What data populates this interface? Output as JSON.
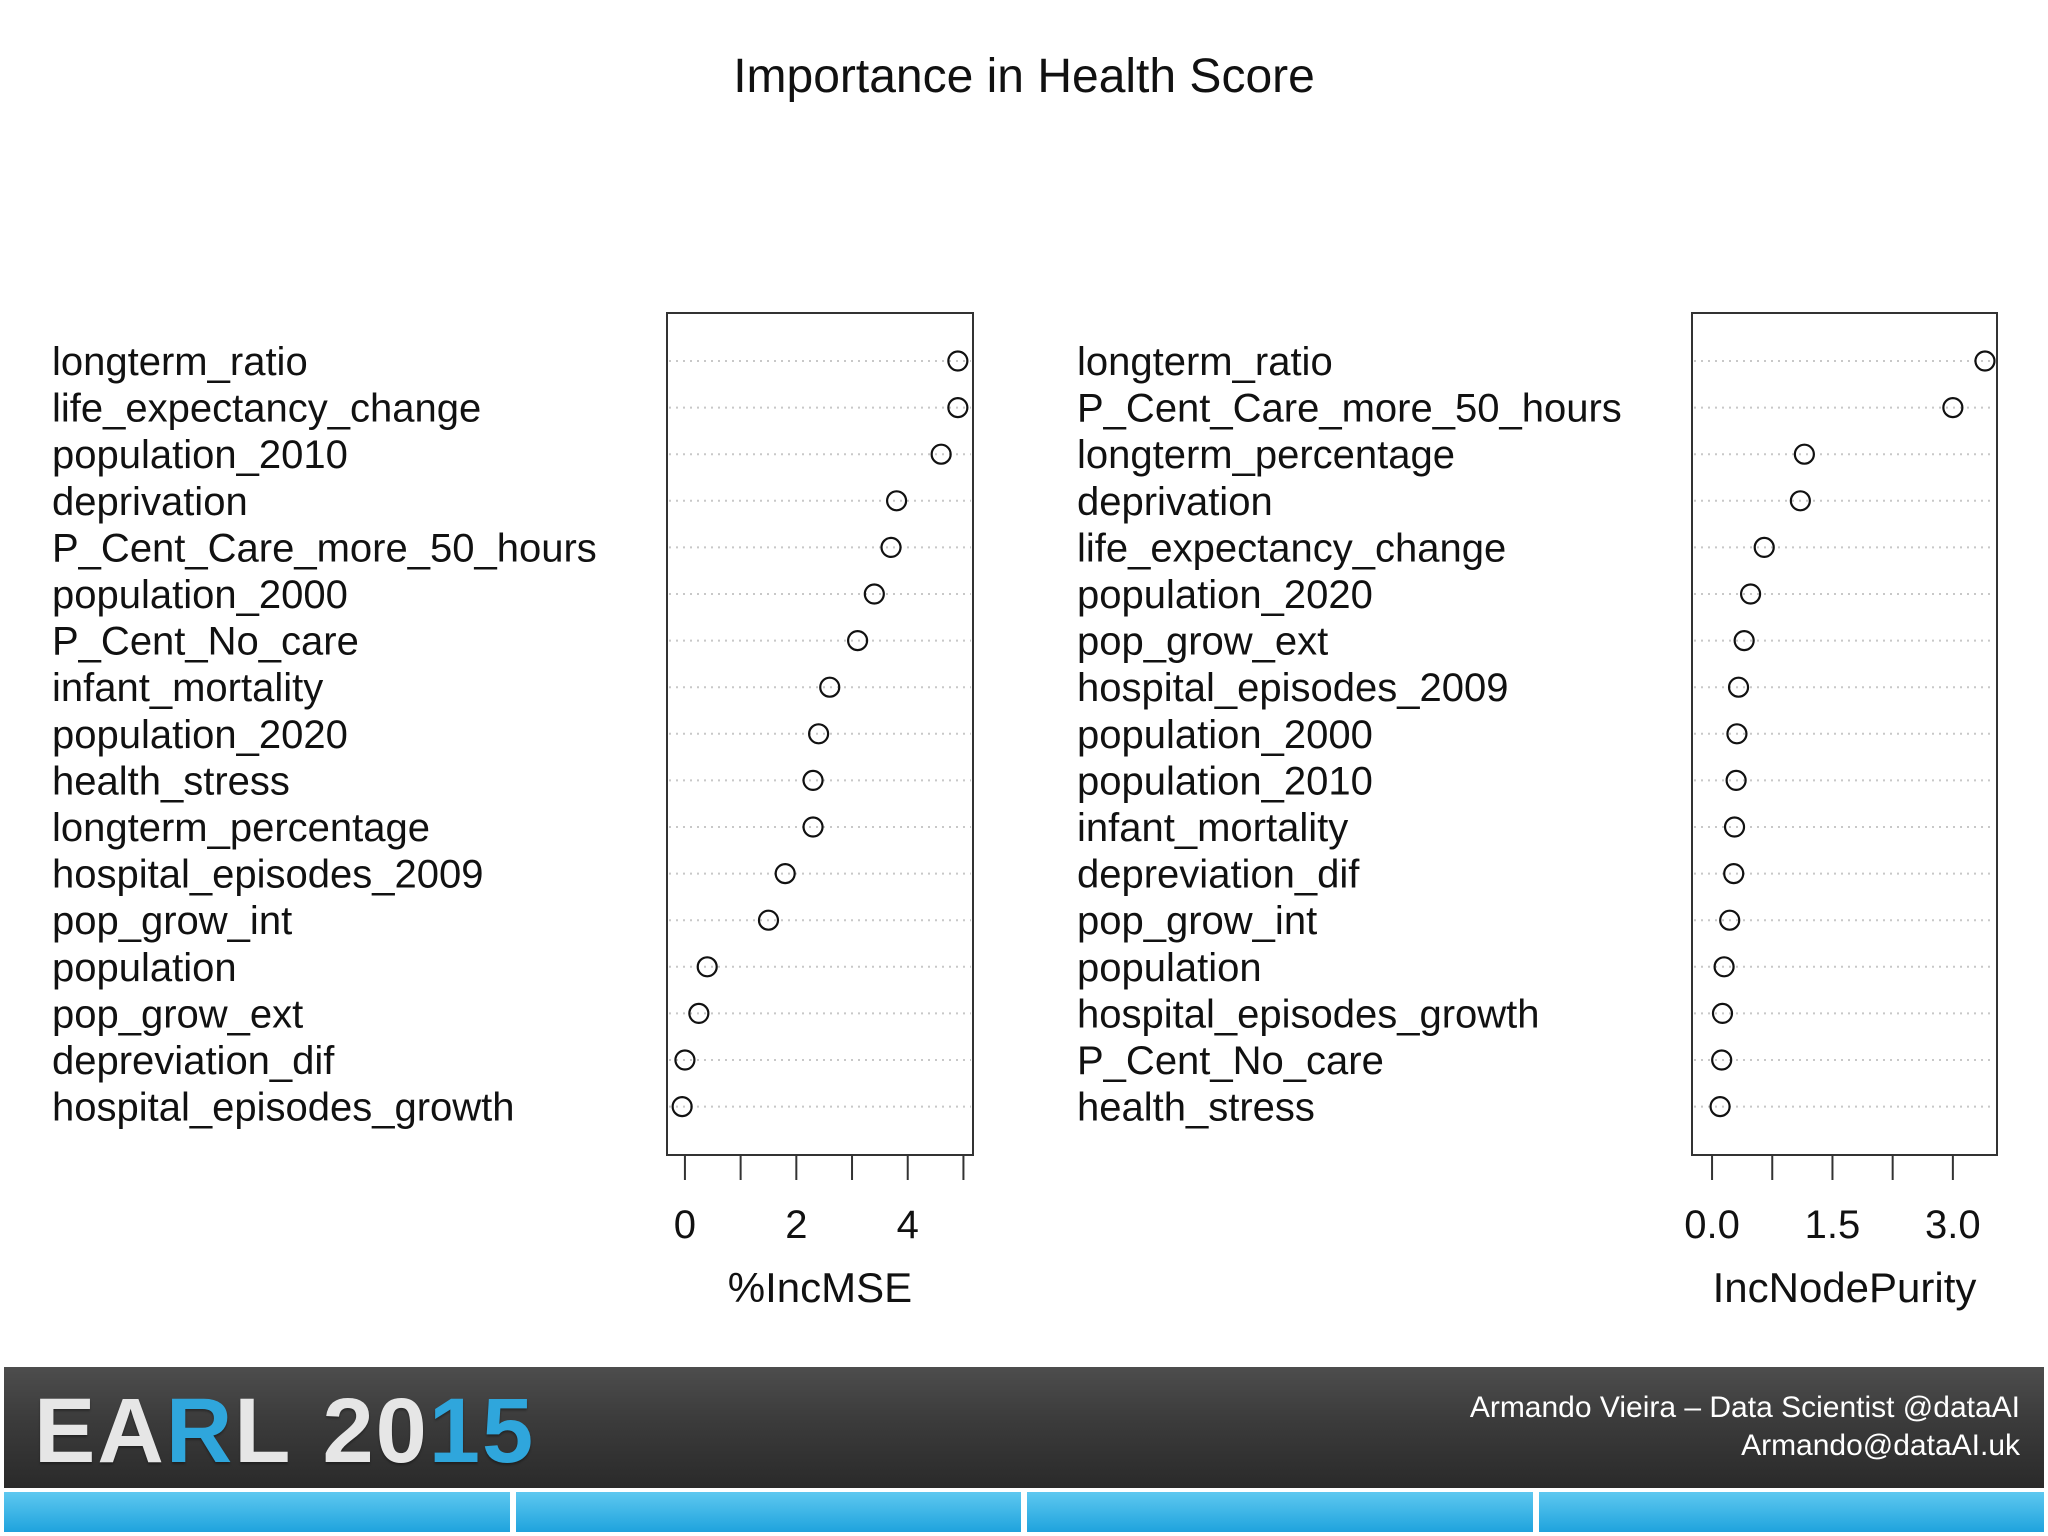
{
  "chart_data": {
    "title": "Importance in Health Score",
    "panels": [
      {
        "type": "scatter",
        "xlabel": "%IncMSE",
        "xticks": [
          0,
          2,
          4
        ],
        "xlim": [
          -0.25,
          5.1
        ],
        "categories": [
          "longterm_ratio",
          "life_expectancy_change",
          "population_2010",
          "deprivation",
          "P_Cent_Care_more_50_hours",
          "population_2000",
          "P_Cent_No_care",
          "infant_mortality",
          "population_2020",
          "health_stress",
          "longterm_percentage",
          "hospital_episodes_2009",
          "pop_grow_int",
          "population",
          "pop_grow_ext",
          "depreviation_dif",
          "hospital_episodes_growth"
        ],
        "values": [
          4.9,
          4.9,
          4.6,
          3.8,
          3.7,
          3.4,
          3.1,
          2.6,
          2.4,
          2.3,
          2.3,
          1.8,
          1.5,
          0.4,
          0.25,
          0.0,
          -0.05
        ]
      },
      {
        "type": "scatter",
        "xlabel": "IncNodePurity",
        "xticks": [
          0.0,
          1.5,
          3.0
        ],
        "xlim": [
          -0.2,
          3.5
        ],
        "tick_labels": [
          "0.0",
          "1.5",
          "3.0"
        ],
        "categories": [
          "longterm_ratio",
          "P_Cent_Care_more_50_hours",
          "longterm_percentage",
          "deprivation",
          "life_expectancy_change",
          "population_2020",
          "pop_grow_ext",
          "hospital_episodes_2009",
          "population_2000",
          "population_2010",
          "infant_mortality",
          "depreviation_dif",
          "pop_grow_int",
          "population",
          "hospital_episodes_growth",
          "P_Cent_No_care",
          "health_stress"
        ],
        "values": [
          3.4,
          3.0,
          1.15,
          1.1,
          0.65,
          0.48,
          0.4,
          0.33,
          0.31,
          0.3,
          0.28,
          0.27,
          0.22,
          0.15,
          0.13,
          0.12,
          0.1
        ]
      }
    ]
  },
  "footer": {
    "logo_parts": [
      "EA",
      "R",
      "L",
      "20",
      "15"
    ],
    "author_line": "Armando Vieira – Data Scientist @dataAI",
    "email_line": "Armando@dataAI.uk"
  }
}
